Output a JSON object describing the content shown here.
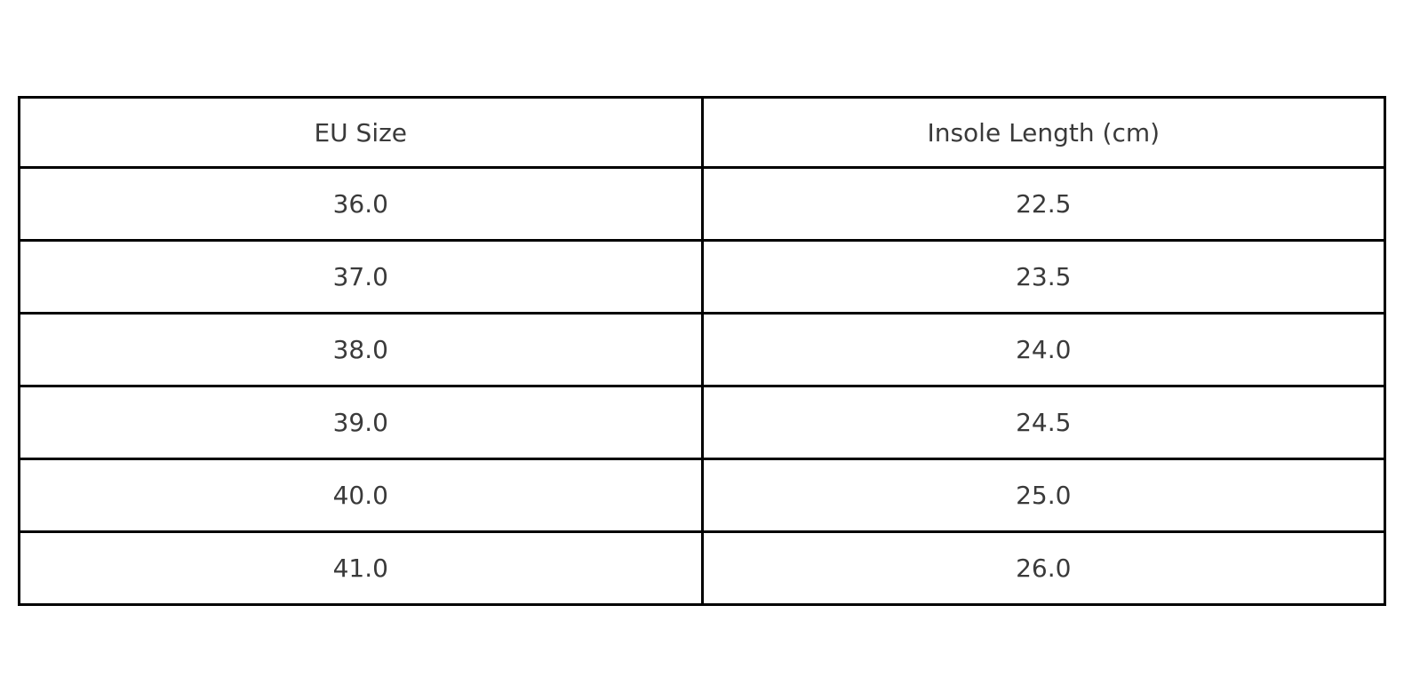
{
  "chart_data": {
    "type": "table",
    "columns": [
      "EU Size",
      "Insole Length (cm)"
    ],
    "rows": [
      [
        "36.0",
        "22.5"
      ],
      [
        "37.0",
        "23.5"
      ],
      [
        "38.0",
        "24.0"
      ],
      [
        "39.0",
        "24.5"
      ],
      [
        "40.0",
        "25.0"
      ],
      [
        "41.0",
        "26.0"
      ]
    ],
    "title": "",
    "legend": null,
    "grid": "full-borders",
    "border_color": "#000000",
    "text_color": "#3a3a3a",
    "background_color": "#ffffff"
  }
}
